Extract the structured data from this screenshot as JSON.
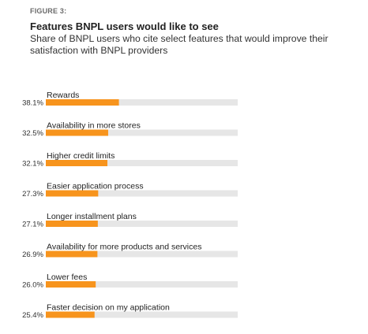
{
  "figure_label": "FIGURE 3:",
  "colors": {
    "bar": "#F7941D",
    "track": "#E6E6E6"
  },
  "chart_data": {
    "type": "bar",
    "orientation": "horizontal",
    "title": "Features BNPL users would like to see",
    "subtitle": "Share of BNPL users who cite select features that would improve their satisfaction with BNPL providers",
    "xlim": [
      0,
      100
    ],
    "grid": false,
    "categories": [
      "Rewards",
      "Availability in more stores",
      "Higher credit limits",
      "Easier application process",
      "Longer installment plans",
      "Availability for more products and services",
      "Lower fees",
      "Faster decision on my application"
    ],
    "values": [
      38.1,
      32.5,
      32.1,
      27.3,
      27.1,
      26.9,
      26.0,
      25.4
    ],
    "value_labels": [
      "38.1%",
      "32.5%",
      "32.1%",
      "27.3%",
      "27.1%",
      "26.9%",
      "26.0%",
      "25.4%"
    ]
  }
}
